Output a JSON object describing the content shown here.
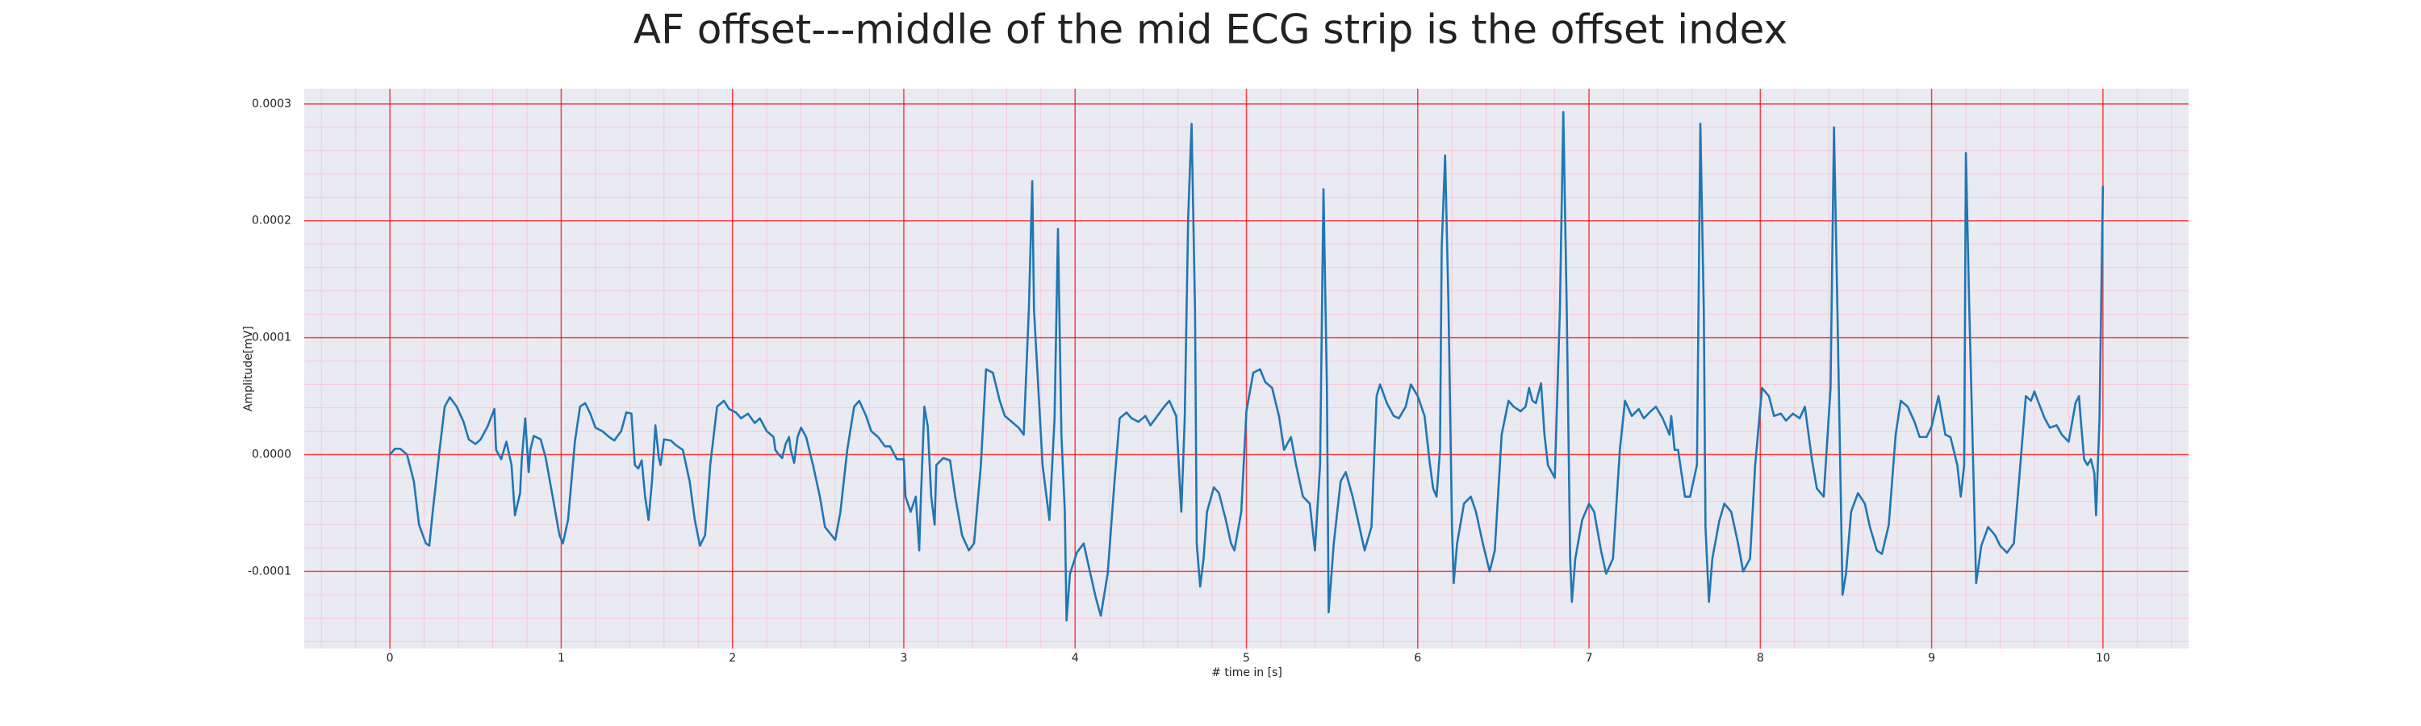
{
  "chart_data": {
    "type": "line",
    "title": "AF offset---middle of the mid ECG strip is the offset index",
    "xlabel": "# time in [s]",
    "ylabel": "Amplitude[mV]",
    "xlim": [
      -0.5,
      10.5
    ],
    "xticks": [
      0,
      1,
      2,
      3,
      4,
      5,
      6,
      7,
      8,
      9,
      10
    ],
    "ylim": [
      -0.000166,
      0.000313
    ],
    "yticks": [
      -0.0001,
      {
        "value": 0,
        "label": "0.0000"
      },
      0.0001,
      0.0002,
      0.0003
    ],
    "grid": true,
    "minor_grid": true,
    "grid_color": "#ff0000",
    "minor_grid_color": "#ffb3c1",
    "background": "#eaeaf2",
    "color": "#1f77b4",
    "x": [
      0.0,
      0.03,
      0.06,
      0.1,
      0.14,
      0.17,
      0.21,
      0.23,
      0.25,
      0.29,
      0.32,
      0.35,
      0.39,
      0.43,
      0.46,
      0.5,
      0.53,
      0.57,
      0.61,
      0.62,
      0.65,
      0.68,
      0.71,
      0.73,
      0.76,
      0.77,
      0.79,
      0.81,
      0.82,
      0.84,
      0.88,
      0.91,
      0.95,
      0.99,
      1.01,
      1.04,
      1.08,
      1.11,
      1.14,
      1.17,
      1.2,
      1.24,
      1.28,
      1.31,
      1.35,
      1.38,
      1.41,
      1.43,
      1.45,
      1.47,
      1.49,
      1.51,
      1.53,
      1.55,
      1.57,
      1.58,
      1.6,
      1.64,
      1.67,
      1.71,
      1.75,
      1.78,
      1.81,
      1.84,
      1.87,
      1.91,
      1.95,
      1.98,
      2.02,
      2.05,
      2.09,
      2.13,
      2.16,
      2.2,
      2.24,
      2.25,
      2.27,
      2.29,
      2.31,
      2.33,
      2.34,
      2.36,
      2.38,
      2.4,
      2.43,
      2.47,
      2.51,
      2.54,
      2.6,
      2.63,
      2.67,
      2.71,
      2.74,
      2.78,
      2.81,
      2.85,
      2.89,
      2.92,
      2.96,
      3.0,
      3.01,
      3.04,
      3.07,
      3.09,
      3.1,
      3.12,
      3.14,
      3.16,
      3.18,
      3.19,
      3.23,
      3.27,
      3.3,
      3.34,
      3.38,
      3.41,
      3.45,
      3.48,
      3.52,
      3.56,
      3.59,
      3.63,
      3.67,
      3.7,
      3.73,
      3.75,
      3.76,
      3.81,
      3.85,
      3.88,
      3.9,
      3.92,
      3.94,
      3.95,
      3.97,
      4.01,
      4.05,
      4.08,
      4.12,
      4.15,
      4.19,
      4.23,
      4.26,
      4.3,
      4.33,
      4.37,
      4.41,
      4.44,
      4.48,
      4.52,
      4.55,
      4.59,
      4.62,
      4.64,
      4.66,
      4.68,
      4.7,
      4.71,
      4.73,
      4.75,
      4.77,
      4.81,
      4.84,
      4.88,
      4.91,
      4.93,
      4.97,
      5.0,
      5.04,
      5.08,
      5.11,
      5.15,
      5.19,
      5.22,
      5.26,
      5.29,
      5.33,
      5.37,
      5.4,
      5.43,
      5.45,
      5.47,
      5.48,
      5.51,
      5.55,
      5.58,
      5.62,
      5.66,
      5.69,
      5.73,
      5.76,
      5.78,
      5.82,
      5.86,
      5.89,
      5.93,
      5.96,
      6.0,
      6.04,
      6.07,
      6.09,
      6.11,
      6.13,
      6.14,
      6.16,
      6.18,
      6.2,
      6.21,
      6.23,
      6.27,
      6.31,
      6.34,
      6.38,
      6.42,
      6.45,
      6.49,
      6.53,
      6.56,
      6.6,
      6.63,
      6.65,
      6.67,
      6.69,
      6.72,
      6.74,
      6.76,
      6.8,
      6.83,
      6.85,
      6.87,
      6.89,
      6.9,
      6.92,
      6.96,
      7.0,
      7.03,
      7.07,
      7.1,
      7.14,
      7.18,
      7.21,
      7.25,
      7.29,
      7.32,
      7.36,
      7.39,
      7.43,
      7.47,
      7.48,
      7.5,
      7.52,
      7.56,
      7.59,
      7.63,
      7.65,
      7.67,
      7.68,
      7.7,
      7.72,
      7.76,
      7.79,
      7.83,
      7.87,
      7.9,
      7.94,
      7.97,
      8.01,
      8.05,
      8.08,
      8.12,
      8.15,
      8.19,
      8.23,
      8.26,
      8.3,
      8.33,
      8.37,
      8.41,
      8.43,
      8.45,
      8.48,
      8.5,
      8.53,
      8.57,
      8.61,
      8.64,
      8.68,
      8.71,
      8.75,
      8.79,
      8.82,
      8.86,
      8.9,
      8.93,
      8.97,
      9.0,
      9.04,
      9.08,
      9.11,
      9.15,
      9.17,
      9.19,
      9.2,
      9.22,
      9.26,
      9.29,
      9.33,
      9.37,
      9.4,
      9.44,
      9.48,
      9.51,
      9.55,
      9.58,
      9.6,
      9.62,
      9.66,
      9.69,
      9.73,
      9.76,
      9.8,
      9.84,
      9.86,
      9.87,
      9.89,
      9.91,
      9.93,
      9.95,
      9.96,
      9.98,
      10.0
    ],
    "values": [
      0,
      5e-06,
      5e-06,
      0,
      -2.3e-05,
      -6e-05,
      -7.6e-05,
      -7.8e-05,
      -4.9e-05,
      4e-06,
      4.1e-05,
      4.9e-05,
      4.1e-05,
      2.8e-05,
      1.3e-05,
      9e-06,
      1.3e-05,
      2.4e-05,
      3.9e-05,
      4e-06,
      -4e-06,
      1.1e-05,
      -9e-06,
      -5.2e-05,
      -3.3e-05,
      -4e-06,
      3.1e-05,
      -1.5e-05,
      4e-06,
      1.6e-05,
      1.3e-05,
      -3e-06,
      -3.6e-05,
      -6.9e-05,
      -7.6e-05,
      -5.6e-05,
      1.1e-05,
      4.1e-05,
      4.4e-05,
      3.5e-05,
      2.3e-05,
      2e-05,
      1.5e-05,
      1.2e-05,
      2e-05,
      3.6e-05,
      3.5e-05,
      -9e-06,
      -1.2e-05,
      -5e-06,
      -3.6e-05,
      -5.6e-05,
      -2.3e-05,
      2.5e-05,
      -3e-06,
      -9e-06,
      1.3e-05,
      1.2e-05,
      8e-06,
      4e-06,
      -2.3e-05,
      -5.6e-05,
      -7.8e-05,
      -6.9e-05,
      -9e-06,
      4.1e-05,
      4.6e-05,
      3.9e-05,
      3.6e-05,
      3.1e-05,
      3.5e-05,
      2.7e-05,
      3.1e-05,
      2e-05,
      1.5e-05,
      4e-06,
      0,
      -3e-06,
      9e-06,
      1.5e-05,
      4e-06,
      -7e-06,
      1.5e-05,
      2.3e-05,
      1.5e-05,
      -9e-06,
      -3.6e-05,
      -6.2e-05,
      -7.3e-05,
      -4.9e-05,
      4e-06,
      4.1e-05,
      4.6e-05,
      3.3e-05,
      2e-05,
      1.5e-05,
      7e-06,
      7e-06,
      -4e-06,
      -4e-06,
      -3.6e-05,
      -4.9e-05,
      -3.6e-05,
      -8.2e-05,
      -3.6e-05,
      4.1e-05,
      2.4e-05,
      -3.6e-05,
      -6e-05,
      -9e-06,
      -3e-06,
      -5e-06,
      -3.6e-05,
      -6.9e-05,
      -8.2e-05,
      -7.6e-05,
      -9e-06,
      7.3e-05,
      7e-05,
      4.6e-05,
      3.3e-05,
      2.8e-05,
      2.3e-05,
      1.7e-05,
      0.000124,
      0.000234,
      0.000124,
      -9e-06,
      -5.6e-05,
      3.1e-05,
      0.000193,
      1.7e-05,
      -4.9e-05,
      -0.000142,
      -0.000102,
      -8.4e-05,
      -7.6e-05,
      -9.6e-05,
      -0.000122,
      -0.000138,
      -0.000102,
      -2.3e-05,
      3.1e-05,
      3.6e-05,
      3.1e-05,
      2.8e-05,
      3.3e-05,
      2.5e-05,
      3.3e-05,
      4.1e-05,
      4.6e-05,
      3.3e-05,
      -4.9e-05,
      3.1e-05,
      0.000203,
      0.000283,
      0.000124,
      -7.6e-05,
      -0.000113,
      -8.9e-05,
      -4.9e-05,
      -2.8e-05,
      -3.3e-05,
      -5.6e-05,
      -7.6e-05,
      -8.2e-05,
      -4.9e-05,
      3.7e-05,
      7e-05,
      7.3e-05,
      6.2e-05,
      5.7e-05,
      3.3e-05,
      4e-06,
      1.5e-05,
      -9e-06,
      -3.6e-05,
      -4.2e-05,
      -8.2e-05,
      -9e-06,
      0.000227,
      5.7e-05,
      -0.000135,
      -7.6e-05,
      -2.3e-05,
      -1.5e-05,
      -3.6e-05,
      -6.2e-05,
      -8.2e-05,
      -6.2e-05,
      5e-05,
      6e-05,
      4.4e-05,
      3.3e-05,
      3.1e-05,
      4.1e-05,
      6e-05,
      5e-05,
      3.3e-05,
      -7e-06,
      -2.9e-05,
      -3.6e-05,
      4e-06,
      0.000177,
      0.000256,
      0.000124,
      -6.2e-05,
      -0.00011,
      -7.6e-05,
      -4.2e-05,
      -3.6e-05,
      -4.9e-05,
      -7.6e-05,
      -0.0001,
      -8.2e-05,
      1.7e-05,
      4.6e-05,
      4.1e-05,
      3.7e-05,
      4.1e-05,
      5.7e-05,
      4.6e-05,
      4.4e-05,
      6.1e-05,
      1.7e-05,
      -9e-06,
      -2e-05,
      0.000124,
      0.000293,
      0.000124,
      -8.9e-05,
      -0.000126,
      -8.9e-05,
      -5.6e-05,
      -4.2e-05,
      -4.9e-05,
      -8.2e-05,
      -0.000102,
      -8.9e-05,
      4e-06,
      4.6e-05,
      3.3e-05,
      3.9e-05,
      3.1e-05,
      3.7e-05,
      4.1e-05,
      3.1e-05,
      1.7e-05,
      3.3e-05,
      4e-06,
      4e-06,
      -3.6e-05,
      -3.6e-05,
      -9e-06,
      0.000283,
      0.000124,
      -6.2e-05,
      -0.000126,
      -8.9e-05,
      -5.7e-05,
      -4.2e-05,
      -4.9e-05,
      -7.6e-05,
      -0.0001,
      -8.9e-05,
      -9e-06,
      5.7e-05,
      5e-05,
      3.3e-05,
      3.5e-05,
      2.9e-05,
      3.5e-05,
      3.1e-05,
      4.1e-05,
      -3e-06,
      -2.9e-05,
      -3.6e-05,
      5.7e-05,
      0.00028,
      0.000124,
      -0.00012,
      -0.000102,
      -4.9e-05,
      -3.3e-05,
      -4.2e-05,
      -6.2e-05,
      -8.2e-05,
      -8.5e-05,
      -6e-05,
      1.7e-05,
      4.6e-05,
      4.1e-05,
      2.8e-05,
      1.5e-05,
      1.5e-05,
      2.4e-05,
      5e-05,
      1.7e-05,
      1.5e-05,
      -9e-06,
      -3.6e-05,
      -9e-06,
      0.000258,
      0.000124,
      -0.00011,
      -7.8e-05,
      -6.2e-05,
      -6.9e-05,
      -7.8e-05,
      -8.4e-05,
      -7.6e-05,
      -2.3e-05,
      5e-05,
      4.6e-05,
      5.4e-05,
      4.6e-05,
      3.1e-05,
      2.3e-05,
      2.5e-05,
      1.7e-05,
      1.1e-05,
      4.4e-05,
      5e-05,
      3.1e-05,
      -4e-06,
      -9e-06,
      -4e-06,
      -1.6e-05,
      -5.2e-05,
      3.1e-05,
      0.00023
    ]
  }
}
